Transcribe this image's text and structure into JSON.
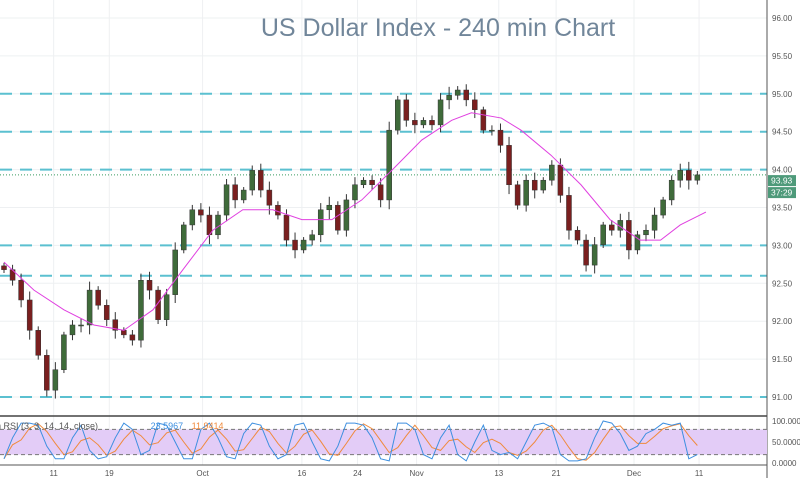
{
  "chart_data": {
    "type": "candlestick",
    "title": "US Dollar Index - 240 min Chart",
    "x_tick_labels": [
      {
        "index": 5.8,
        "label": "11"
      },
      {
        "index": 12.3,
        "label": "19"
      },
      {
        "index": 23.2,
        "label": "Oct"
      },
      {
        "index": 34.8,
        "label": "16"
      },
      {
        "index": 41.3,
        "label": "24"
      },
      {
        "index": 48.2,
        "label": "Nov"
      },
      {
        "index": 57.8,
        "label": "13"
      },
      {
        "index": 64.5,
        "label": "21"
      },
      {
        "index": 73.6,
        "label": "Dec"
      },
      {
        "index": 81.2,
        "label": "11"
      }
    ],
    "ylim": [
      90.8,
      96.1
    ],
    "y_ticks": [
      "96.00",
      "95.50",
      "95.00",
      "94.50",
      "94.00",
      "93.50",
      "93.00",
      "92.50",
      "92.00",
      "91.50",
      "91.00"
    ],
    "close": [
      92.68,
      92.54,
      92.28,
      91.88,
      91.55,
      91.09,
      91.36,
      91.82,
      91.95,
      91.95,
      92.41,
      92.21,
      92.02,
      91.88,
      91.82,
      91.75,
      92.54,
      92.41,
      92.02,
      92.35,
      92.94,
      93.27,
      93.47,
      93.4,
      93.14,
      93.4,
      93.8,
      93.6,
      93.73,
      93.99,
      93.73,
      93.53,
      93.4,
      93.07,
      92.94,
      93.07,
      93.14,
      93.47,
      93.53,
      93.2,
      93.6,
      93.8,
      93.86,
      93.8,
      93.6,
      94.52,
      94.92,
      94.65,
      94.59,
      94.65,
      94.59,
      94.92,
      94.98,
      95.05,
      94.92,
      94.79,
      94.52,
      94.52,
      94.32,
      93.8,
      93.53,
      93.86,
      93.73,
      93.86,
      94.06,
      93.66,
      93.2,
      93.07,
      92.74,
      93.01,
      93.27,
      93.2,
      93.33,
      92.94,
      93.14,
      93.2,
      93.4,
      93.6,
      93.86,
      93.99,
      93.86,
      93.93
    ],
    "moving_average": [
      [
        0,
        92.78
      ],
      [
        3.5,
        92.41
      ],
      [
        7,
        92.15
      ],
      [
        10.5,
        91.95
      ],
      [
        14,
        91.88
      ],
      [
        17.4,
        92.15
      ],
      [
        20.9,
        92.68
      ],
      [
        24.4,
        93.2
      ],
      [
        27.9,
        93.47
      ],
      [
        31.4,
        93.47
      ],
      [
        34.8,
        93.34
      ],
      [
        38.3,
        93.34
      ],
      [
        41.8,
        93.6
      ],
      [
        45.3,
        93.99
      ],
      [
        48.8,
        94.39
      ],
      [
        52.3,
        94.65
      ],
      [
        54.6,
        94.75
      ],
      [
        58.1,
        94.68
      ],
      [
        60.4,
        94.52
      ],
      [
        63.9,
        94.19
      ],
      [
        67.4,
        93.8
      ],
      [
        70.8,
        93.34
      ],
      [
        74.3,
        93.07
      ],
      [
        76.7,
        93.07
      ],
      [
        79,
        93.27
      ],
      [
        82,
        93.44
      ]
    ],
    "levels": [
      95.0,
      94.5,
      94.0,
      93.0,
      92.6,
      91.0
    ],
    "last_price": "93.93",
    "countdown": "37:29",
    "colors": {
      "up": "#3f6b3a",
      "down": "#7a1f1f",
      "ma": "#e040e0",
      "levels": "#5bc0d0",
      "price_label": "#4e9a7a"
    },
    "oscillator": {
      "name": "Stoch RSI (3, 3, 14, 14, close)",
      "k_value": "23.5967",
      "d_value": "11.9414",
      "y_ticks": [
        "100.000",
        "50.0000",
        "0.0000"
      ],
      "bands": [
        20,
        80
      ],
      "k": [
        10,
        60,
        95,
        95,
        90,
        40,
        10,
        10,
        60,
        90,
        30,
        10,
        15,
        60,
        95,
        80,
        20,
        30,
        95,
        90,
        50,
        10,
        10,
        80,
        95,
        60,
        15,
        10,
        70,
        95,
        90,
        40,
        10,
        20,
        90,
        95,
        50,
        10,
        5,
        40,
        95,
        95,
        90,
        60,
        10,
        5,
        95,
        95,
        80,
        20,
        10,
        60,
        90,
        20,
        5,
        50,
        90,
        30,
        20,
        25,
        10,
        50,
        90,
        95,
        85,
        20,
        5,
        5,
        10,
        60,
        100,
        95,
        70,
        30,
        40,
        70,
        80,
        95,
        90,
        95,
        10,
        20
      ]
    }
  }
}
